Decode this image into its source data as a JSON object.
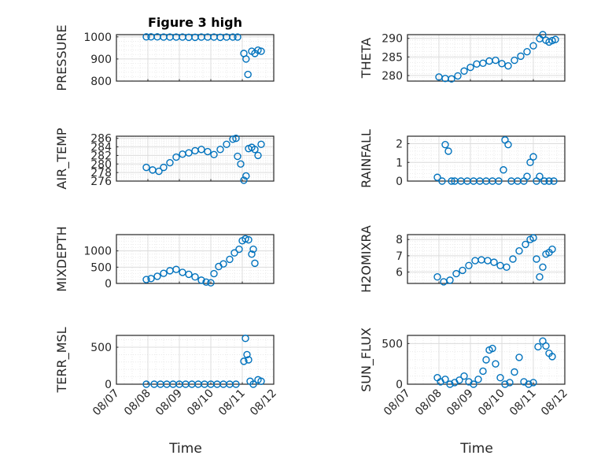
{
  "figure_title": "Figure 3 high",
  "xlabel": "Time",
  "marker_color": "#0072BD",
  "x_ticks": [
    "08/07",
    "08/08",
    "08/09",
    "08/10",
    "08/11",
    "08/12"
  ],
  "chart_data": [
    {
      "type": "scatter",
      "title": "Figure 3 high",
      "ylabel": "PRESSURE",
      "xlabel": "",
      "xlim": [
        0,
        5
      ],
      "ylim": [
        800,
        1010
      ],
      "yticks": [
        800,
        900,
        1000
      ],
      "grid": true,
      "x": [
        0.95,
        1.1,
        1.3,
        1.5,
        1.7,
        1.9,
        2.1,
        2.3,
        2.5,
        2.7,
        2.9,
        3.1,
        3.3,
        3.5,
        3.7,
        3.85,
        4.05,
        4.12,
        4.18,
        4.3,
        4.4,
        4.5,
        4.6
      ],
      "y": [
        1000,
        1000,
        1000,
        999,
        999,
        999,
        999,
        998,
        998,
        999,
        999,
        999,
        998,
        999,
        999,
        999,
        925,
        900,
        830,
        935,
        925,
        940,
        935
      ]
    },
    {
      "type": "scatter",
      "ylabel": "THETA",
      "xlabel": "",
      "xlim": [
        0,
        5
      ],
      "ylim": [
        278.5,
        291
      ],
      "yticks": [
        280,
        285,
        290
      ],
      "grid": true,
      "x": [
        1.0,
        1.2,
        1.4,
        1.6,
        1.8,
        2.0,
        2.2,
        2.4,
        2.6,
        2.8,
        3.0,
        3.2,
        3.4,
        3.6,
        3.8,
        4.0,
        4.2,
        4.3,
        4.4,
        4.5,
        4.6,
        4.7
      ],
      "y": [
        279.6,
        279.2,
        279.1,
        279.9,
        281.2,
        282.2,
        283.1,
        283.3,
        283.9,
        284.1,
        283.2,
        282.6,
        284.1,
        285.2,
        286.4,
        288.0,
        289.9,
        291.0,
        289.5,
        289.0,
        289.4,
        289.7
      ]
    },
    {
      "type": "scatter",
      "ylabel": "AIR_TEMP",
      "xlabel": "",
      "xlim": [
        0,
        5
      ],
      "ylim": [
        276,
        286.5
      ],
      "yticks": [
        276,
        278,
        280,
        282,
        284,
        286
      ],
      "grid": true,
      "x": [
        0.95,
        1.15,
        1.35,
        1.5,
        1.7,
        1.9,
        2.1,
        2.3,
        2.5,
        2.7,
        2.9,
        3.1,
        3.3,
        3.5,
        3.7,
        3.8,
        3.85,
        3.95,
        4.05,
        4.12,
        4.2,
        4.3,
        4.4,
        4.5,
        4.6
      ],
      "y": [
        279.2,
        278.6,
        278.3,
        279.2,
        280.3,
        281.6,
        282.3,
        282.6,
        283.1,
        283.4,
        282.9,
        282.2,
        283.4,
        284.6,
        285.8,
        286.0,
        281.8,
        280.0,
        276.2,
        277.2,
        283.6,
        283.9,
        283.4,
        282.0,
        284.6
      ]
    },
    {
      "type": "scatter",
      "ylabel": "RAINFALL",
      "xlabel": "",
      "xlim": [
        0,
        5
      ],
      "ylim": [
        0,
        2.4
      ],
      "yticks": [
        0,
        1,
        2
      ],
      "grid": true,
      "x": [
        0.95,
        1.1,
        1.2,
        1.3,
        1.4,
        1.5,
        1.7,
        1.9,
        2.1,
        2.3,
        2.5,
        2.7,
        2.9,
        3.05,
        3.1,
        3.2,
        3.3,
        3.5,
        3.7,
        3.8,
        3.9,
        4.0,
        4.1,
        4.2,
        4.35,
        4.5,
        4.65
      ],
      "y": [
        0.2,
        0,
        1.95,
        1.6,
        0,
        0,
        0,
        0,
        0,
        0,
        0,
        0,
        0,
        0.6,
        2.2,
        1.95,
        0,
        0,
        0,
        0.25,
        1.0,
        1.3,
        0,
        0.25,
        0,
        0,
        0
      ]
    },
    {
      "type": "scatter",
      "ylabel": "MIXDEPTH",
      "xlabel": "",
      "xlim": [
        0,
        5
      ],
      "ylim": [
        0,
        1500
      ],
      "yticks": [
        0,
        500,
        1000
      ],
      "grid": true,
      "x": [
        0.95,
        1.1,
        1.3,
        1.5,
        1.7,
        1.9,
        2.1,
        2.3,
        2.5,
        2.7,
        2.85,
        3.0,
        3.1,
        3.25,
        3.4,
        3.6,
        3.75,
        3.9,
        4.0,
        4.1,
        4.2,
        4.3,
        4.35,
        4.4
      ],
      "y": [
        120,
        150,
        220,
        310,
        390,
        430,
        340,
        280,
        200,
        100,
        40,
        20,
        300,
        520,
        600,
        740,
        940,
        1050,
        1310,
        1370,
        1340,
        900,
        1050,
        620
      ]
    },
    {
      "type": "scatter",
      "ylabel": "H2OMIXRA",
      "xlabel": "",
      "xlim": [
        0,
        5
      ],
      "ylim": [
        5.3,
        8.3
      ],
      "yticks": [
        6,
        7,
        8
      ],
      "grid": true,
      "x": [
        0.95,
        1.15,
        1.35,
        1.55,
        1.75,
        1.95,
        2.15,
        2.35,
        2.55,
        2.75,
        2.95,
        3.15,
        3.35,
        3.55,
        3.75,
        3.9,
        4.0,
        4.1,
        4.2,
        4.3,
        4.4,
        4.5,
        4.6
      ],
      "y": [
        5.7,
        5.4,
        5.5,
        5.9,
        6.1,
        6.4,
        6.7,
        6.75,
        6.7,
        6.6,
        6.4,
        6.3,
        6.8,
        7.3,
        7.7,
        8.0,
        8.1,
        6.8,
        5.7,
        6.3,
        7.1,
        7.2,
        7.4
      ]
    },
    {
      "type": "scatter",
      "ylabel": "TERR_MSL",
      "xlabel": "",
      "xlim": [
        0,
        5
      ],
      "ylim": [
        0,
        660
      ],
      "yticks": [
        0,
        500
      ],
      "grid": true,
      "x": [
        0.95,
        1.2,
        1.4,
        1.6,
        1.8,
        2.0,
        2.2,
        2.4,
        2.6,
        2.8,
        3.0,
        3.2,
        3.4,
        3.6,
        3.8,
        4.05,
        4.1,
        4.15,
        4.2,
        4.25,
        4.35,
        4.5,
        4.6
      ],
      "y": [
        0,
        0,
        0,
        0,
        0,
        0,
        0,
        0,
        0,
        0,
        0,
        0,
        0,
        0,
        0,
        310,
        620,
        400,
        330,
        40,
        0,
        60,
        40
      ]
    },
    {
      "type": "scatter",
      "ylabel": "SUN_FLUX",
      "xlabel": "",
      "xlim": [
        0,
        5
      ],
      "ylim": [
        0,
        600
      ],
      "yticks": [
        0,
        500
      ],
      "grid": true,
      "x": [
        0.95,
        1.05,
        1.2,
        1.35,
        1.5,
        1.65,
        1.8,
        1.95,
        2.1,
        2.25,
        2.4,
        2.5,
        2.6,
        2.7,
        2.8,
        2.95,
        3.1,
        3.25,
        3.4,
        3.55,
        3.7,
        3.85,
        4.0,
        4.15,
        4.3,
        4.4,
        4.5,
        4.6
      ],
      "y": [
        80,
        30,
        60,
        0,
        20,
        50,
        100,
        30,
        0,
        60,
        160,
        300,
        420,
        440,
        250,
        80,
        0,
        20,
        150,
        330,
        30,
        0,
        20,
        460,
        530,
        470,
        380,
        340
      ]
    }
  ]
}
